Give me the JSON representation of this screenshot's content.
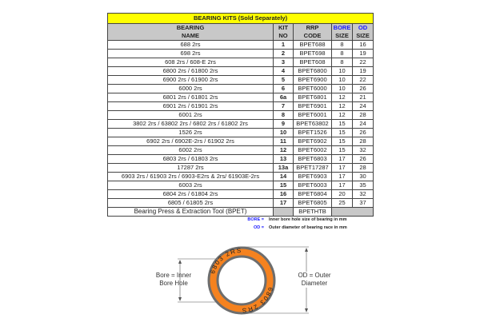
{
  "table": {
    "title": "BEARING KITS (Sold Separately)",
    "headers": {
      "name": [
        "BEARING",
        "NAME"
      ],
      "kit": [
        "KIT",
        "NO"
      ],
      "rrp": [
        "RRP",
        "CODE"
      ],
      "bore": [
        "BORE",
        "SIZE"
      ],
      "od": [
        "OD",
        "SIZE"
      ]
    },
    "rows": [
      {
        "name": "688 2rs",
        "kit": "1",
        "code": "BPET688",
        "bore": "8",
        "od": "16"
      },
      {
        "name": "698 2rs",
        "kit": "2",
        "code": "BPET698",
        "bore": "8",
        "od": "19"
      },
      {
        "name": "608 2rs / 608-E 2rs",
        "kit": "3",
        "code": "BPET608",
        "bore": "8",
        "od": "22"
      },
      {
        "name": "6800 2rs / 61800 2rs",
        "kit": "4",
        "code": "BPET6800",
        "bore": "10",
        "od": "19"
      },
      {
        "name": "6900 2rs / 61900 2rs",
        "kit": "5",
        "code": "BPET6900",
        "bore": "10",
        "od": "22"
      },
      {
        "name": "6000 2rs",
        "kit": "6",
        "code": "BPET6000",
        "bore": "10",
        "od": "26"
      },
      {
        "name": "6801 2rs / 61801 2rs",
        "kit": "6a",
        "code": "BPET6801",
        "bore": "12",
        "od": "21"
      },
      {
        "name": "6901 2rs / 61901 2rs",
        "kit": "7",
        "code": "BPET6901",
        "bore": "12",
        "od": "24"
      },
      {
        "name": "6001 2rs",
        "kit": "8",
        "code": "BPET6001",
        "bore": "12",
        "od": "28"
      },
      {
        "name": "3802 2rs / 63802 2rs / 6802 2rs / 61802 2rs",
        "kit": "9",
        "code": "BPET63802",
        "bore": "15",
        "od": "24"
      },
      {
        "name": "1526 2rs",
        "kit": "10",
        "code": "BPET1526",
        "bore": "15",
        "od": "26"
      },
      {
        "name": "6902 2rs / 6902E-2rs / 61902 2rs",
        "kit": "11",
        "code": "BPET6902",
        "bore": "15",
        "od": "28"
      },
      {
        "name": "6002 2rs",
        "kit": "12",
        "code": "BPET6002",
        "bore": "15",
        "od": "32"
      },
      {
        "name": "6803 2rs / 61803 2rs",
        "kit": "13",
        "code": "BPET6803",
        "bore": "17",
        "od": "26"
      },
      {
        "name": "17287 2rs",
        "kit": "13a",
        "code": "BPET17287",
        "bore": "17",
        "od": "28"
      },
      {
        "name": "6903 2rs / 61903 2rs / 6903-E2rs & 2rs/  61903E-2rs",
        "kit": "14",
        "code": "BPET6903",
        "bore": "17",
        "od": "30"
      },
      {
        "name": "6003 2rs",
        "kit": "15",
        "code": "BPET6003",
        "bore": "17",
        "od": "35"
      },
      {
        "name": "6804 2rs / 61804 2rs",
        "kit": "16",
        "code": "BPET6804",
        "bore": "20",
        "od": "32"
      },
      {
        "name": "6805 / 61805 2rs",
        "kit": "17",
        "code": "BPET6805",
        "bore": "25",
        "od": "37"
      }
    ],
    "tool_row": {
      "name": "Bearing Press & Extraction Tool (BPET)",
      "code": "BPETHTB"
    }
  },
  "legend": [
    {
      "key": "BORE =",
      "text": "Inner bore hole size of bearing in mm"
    },
    {
      "key": "OD =",
      "text": "Outer diameter of bearing race in mm"
    }
  ],
  "diagram": {
    "bore_label": [
      "Bore = Inner",
      "Bore Hole"
    ],
    "od_label": [
      "OD = Outer",
      "Diameter"
    ],
    "ring_text_top": "6803  2RS",
    "ring_text_bottom": "6803  2RS",
    "colors": {
      "ring": "#f5821f",
      "rim": "#6d6d6d"
    }
  }
}
